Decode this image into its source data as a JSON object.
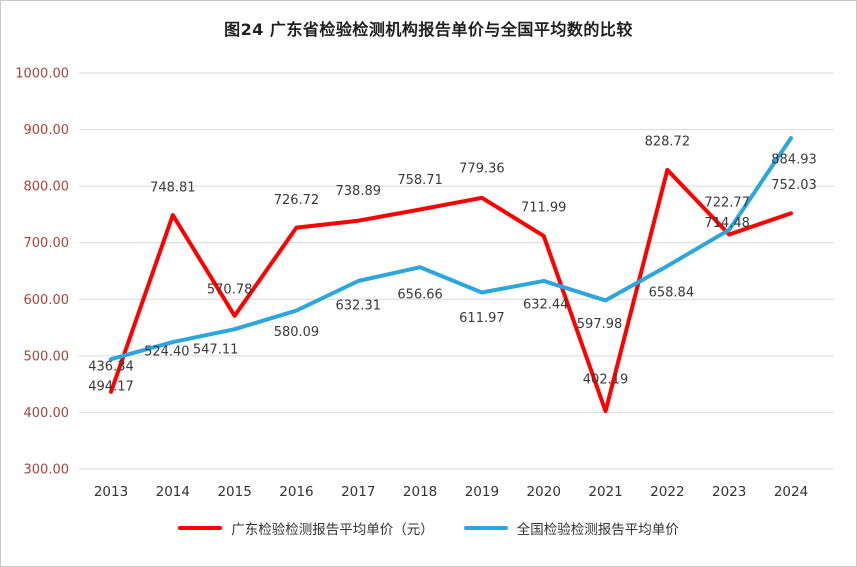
{
  "chart_data": {
    "type": "line",
    "title": "图24  广东省检验检测机构报告单价与全国平均数的比较",
    "categories": [
      "2013",
      "2014",
      "2015",
      "2016",
      "2017",
      "2018",
      "2019",
      "2020",
      "2021",
      "2022",
      "2023",
      "2024"
    ],
    "series": [
      {
        "name": "广东检验检测报告平均单价（元）",
        "color": "#FF0000",
        "values": [
          436.34,
          748.81,
          570.78,
          726.72,
          738.89,
          758.71,
          779.36,
          711.99,
          402.19,
          828.72,
          714.48,
          752.03
        ]
      },
      {
        "name": "全国检验检测报告平均单价",
        "color": "#2BA6DE",
        "values": [
          494.17,
          524.4,
          547.11,
          580.09,
          632.31,
          656.66,
          611.97,
          632.44,
          597.98,
          658.84,
          722.77,
          884.93
        ]
      }
    ],
    "ylim": [
      300,
      1000
    ],
    "ytick_step": 100,
    "ytick_format_decimals": 2,
    "grid": true,
    "legend_position": "bottom",
    "axis_tick_color": "#A6453F",
    "category_label_color": "#333333",
    "data_label_color": "#3A3A3A",
    "gridline_color": "#D9D9D9"
  }
}
